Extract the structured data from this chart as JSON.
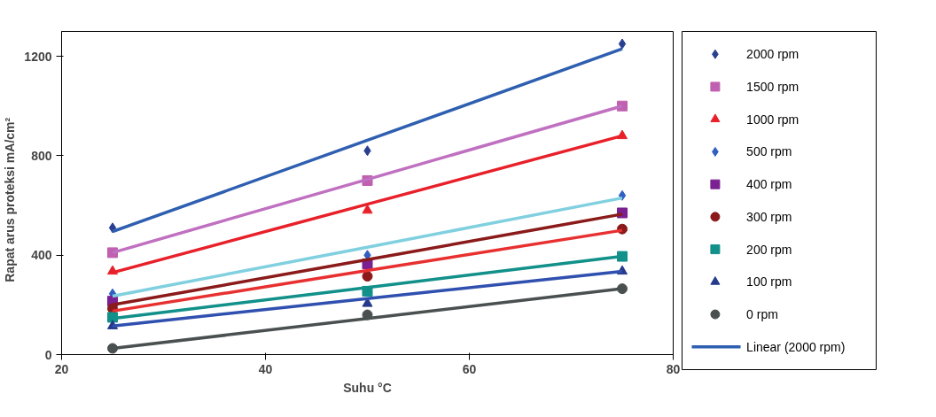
{
  "chart_data": {
    "type": "scatter",
    "xlabel": "Suhu °C",
    "ylabel": "Rapat arus proteksi     mA/cm²",
    "xlim": [
      20,
      80
    ],
    "xticks": [
      20,
      40,
      60,
      80
    ],
    "ylim": [
      0,
      1300
    ],
    "yticks": [
      0,
      400,
      800,
      1200
    ],
    "grid": false,
    "legend": "right",
    "x": [
      25,
      50,
      75
    ],
    "series": [
      {
        "name": "2000 rpm",
        "color": "#2a3f8f",
        "marker": "diamond",
        "values": [
          510,
          820,
          1250
        ]
      },
      {
        "name": "1500 rpm",
        "color": "#c060b0",
        "marker": "square",
        "values": [
          410,
          700,
          1000
        ]
      },
      {
        "name": "1000 rpm",
        "color": "#e8202a",
        "marker": "triangle",
        "values": [
          335,
          580,
          880
        ]
      },
      {
        "name": "500 rpm",
        "color": "#3060c0",
        "marker": "diamond",
        "values": [
          245,
          400,
          640
        ]
      },
      {
        "name": "400 rpm",
        "color": "#7a2090",
        "marker": "square",
        "values": [
          215,
          365,
          570
        ]
      },
      {
        "name": "300 rpm",
        "color": "#8b1a1a",
        "marker": "circle",
        "values": [
          185,
          315,
          505
        ]
      },
      {
        "name": "200 rpm",
        "color": "#12908a",
        "marker": "square",
        "values": [
          150,
          255,
          395
        ]
      },
      {
        "name": "100 rpm",
        "color": "#253a8a",
        "marker": "triangle",
        "values": [
          115,
          205,
          335
        ]
      },
      {
        "name": "0 rpm",
        "color": "#4a5050",
        "marker": "circle",
        "values": [
          25,
          160,
          265
        ]
      },
      {
        "name": "Linear (2000 rpm)",
        "type": "line",
        "color": "#2e5fb0",
        "values": [
          495,
          862,
          1230
        ]
      },
      {
        "type": "line",
        "color": "#c070c0",
        "values": [
          410,
          705,
          1000
        ]
      },
      {
        "type": "line",
        "color": "#e8202a",
        "values": [
          330,
          605,
          880
        ]
      },
      {
        "type": "line",
        "color": "#80d0e0",
        "values": [
          235,
          432,
          630
        ]
      },
      {
        "type": "line",
        "color": "#8b1a1a",
        "values": [
          200,
          382,
          565
        ]
      },
      {
        "type": "line",
        "color": "#e83030",
        "values": [
          175,
          338,
          500
        ]
      },
      {
        "type": "line",
        "color": "#12908a",
        "values": [
          145,
          270,
          395
        ]
      },
      {
        "type": "line",
        "color": "#3050b0",
        "values": [
          115,
          225,
          335
        ]
      },
      {
        "type": "line",
        "color": "#4a5050",
        "values": [
          25,
          145,
          265
        ]
      }
    ]
  }
}
